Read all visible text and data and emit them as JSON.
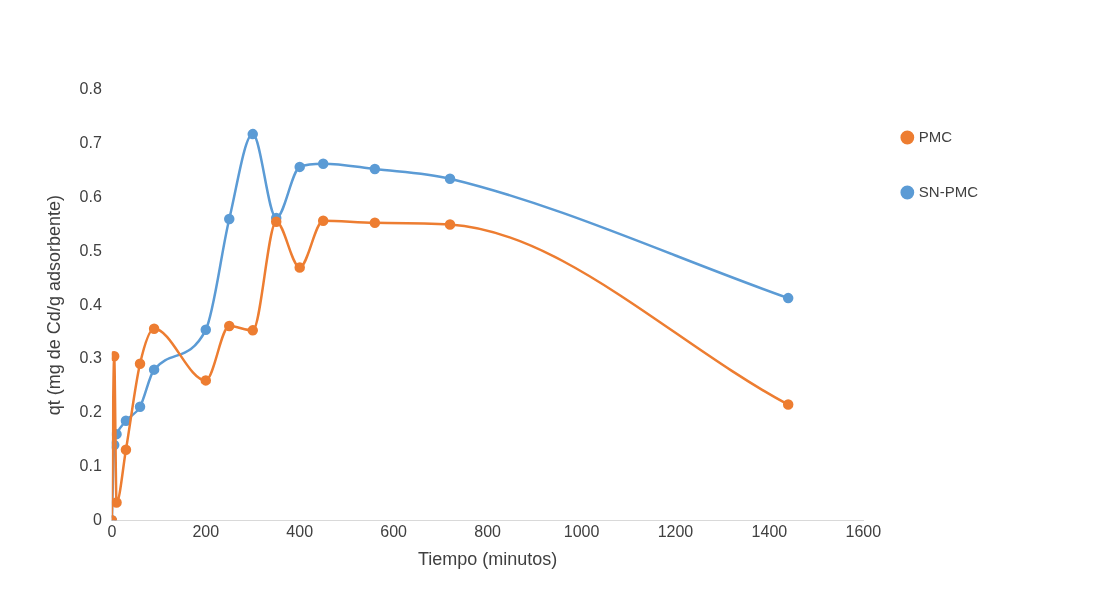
{
  "chart_data": {
    "type": "line",
    "xlabel": "Tiempo (minutos)",
    "ylabel": "qt (mg de Cd/g adsorbente)",
    "xlim": [
      0,
      1600
    ],
    "xticks": [
      0,
      200,
      400,
      600,
      800,
      1000,
      1200,
      1400,
      1600
    ],
    "ylim": [
      0,
      0.8
    ],
    "yticks": [
      0,
      0.1,
      0.2,
      0.3,
      0.4,
      0.5,
      0.6,
      0.7,
      0.8
    ],
    "grid": false,
    "legend": "right",
    "marker": "circle",
    "line_style": "solid",
    "series": [
      {
        "name": "SN-PMC",
        "color": "#5b9bd5",
        "x": [
          0,
          5,
          10,
          30,
          60,
          90,
          200,
          250,
          300,
          350,
          400,
          450,
          560,
          720,
          1440
        ],
        "values": [
          0,
          0.14,
          0.16,
          0.185,
          0.211,
          0.28,
          0.354,
          0.56,
          0.718,
          0.562,
          0.657,
          0.663,
          0.653,
          0.635,
          0.413
        ]
      },
      {
        "name": "PMC",
        "color": "#ed7d31",
        "x": [
          0,
          5,
          10,
          30,
          60,
          90,
          200,
          250,
          300,
          350,
          400,
          450,
          560,
          720,
          1440
        ],
        "values": [
          0,
          0.305,
          0.033,
          0.131,
          0.291,
          0.356,
          0.26,
          0.361,
          0.353,
          0.555,
          0.47,
          0.557,
          0.553,
          0.55,
          0.215
        ]
      }
    ]
  }
}
